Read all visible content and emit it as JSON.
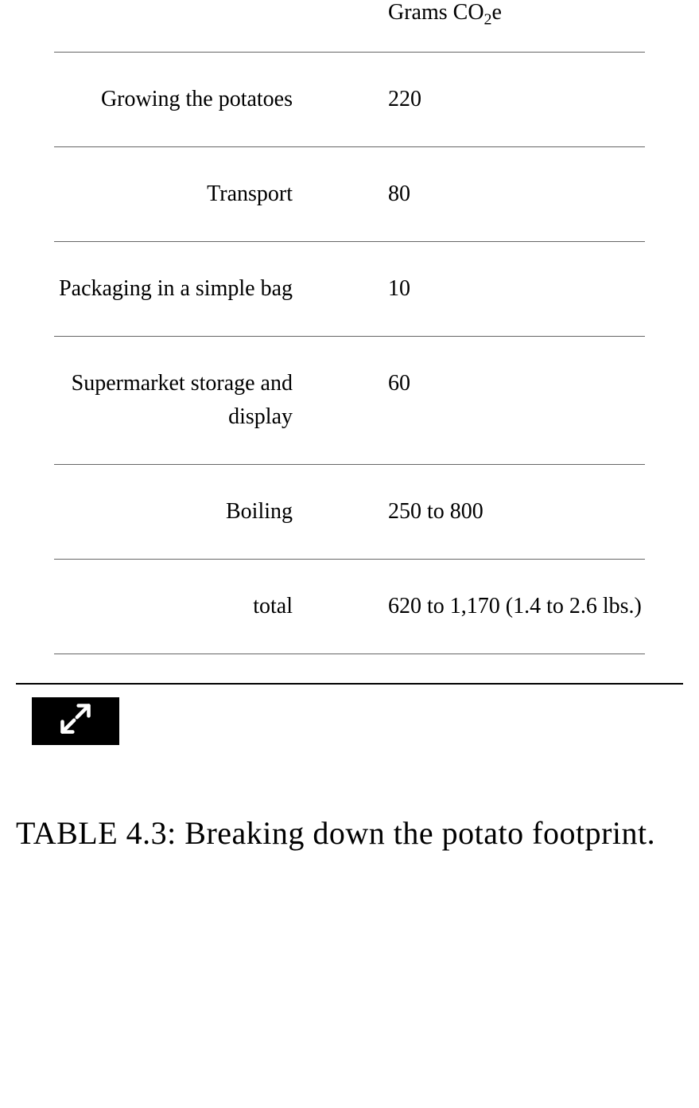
{
  "table": {
    "header": {
      "value_column_html": "Grams CO<sub class=\"sub\">2</sub>e"
    },
    "rows": [
      {
        "label": "Growing the potatoes",
        "value": "220"
      },
      {
        "label": "Transport",
        "value": "80"
      },
      {
        "label": "Packaging in a simple bag",
        "value": "10"
      },
      {
        "label": "Supermarket storage and display",
        "value": "60"
      },
      {
        "label": "Boiling",
        "value": "250 to 800"
      },
      {
        "label": "total",
        "value": "620 to 1,170 (1.4 to 2.6 lbs.)"
      }
    ],
    "colors": {
      "border": "#666666",
      "thick_rule": "#000000",
      "text": "#000000",
      "background": "#ffffff"
    },
    "typography": {
      "cell_fontsize": 28,
      "caption_fontsize": 40
    }
  },
  "caption": {
    "text": "TABLE 4.3: Breaking down the potato footprint."
  }
}
